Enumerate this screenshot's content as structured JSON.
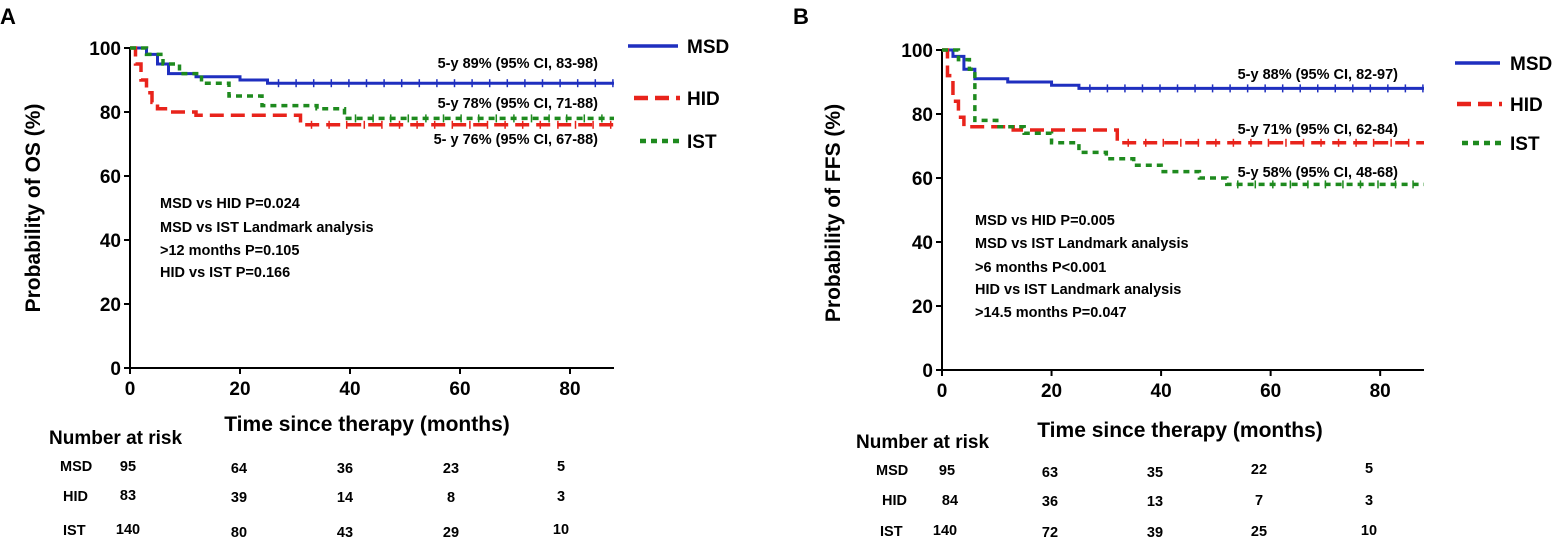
{
  "chart_data": [
    {
      "type": "line",
      "panel": "A",
      "ylabel": "Probability of OS  (%)",
      "xlabel": "Time since therapy (months)",
      "xlim": [
        0,
        88
      ],
      "ylim": [
        0,
        100
      ],
      "xticks": [
        0,
        20,
        40,
        60,
        80
      ],
      "yticks": [
        0,
        20,
        40,
        60,
        80,
        100
      ],
      "legend": [
        "MSD",
        "HID",
        "IST"
      ],
      "series": [
        {
          "name": "MSD",
          "color": "#1f2fbf",
          "dash": "solid",
          "x": [
            0,
            3,
            5,
            7,
            12,
            15,
            20,
            25,
            88
          ],
          "y": [
            100,
            98,
            95,
            92,
            91,
            91,
            90,
            89,
            89
          ]
        },
        {
          "name": "HID",
          "color": "#e8231b",
          "dash": "long",
          "x": [
            0,
            1,
            2,
            3,
            4,
            5,
            7,
            12,
            31,
            88
          ],
          "y": [
            100,
            95,
            90,
            86,
            83,
            81,
            80,
            79,
            76,
            76
          ]
        },
        {
          "name": "IST",
          "color": "#1e8a1e",
          "dash": "short",
          "x": [
            0,
            3,
            6,
            9,
            13,
            18,
            24,
            34,
            39,
            88
          ],
          "y": [
            100,
            98,
            95,
            92,
            89,
            85,
            82,
            81,
            78,
            78
          ]
        }
      ],
      "curve_labels": [
        "5-y 89% (95% CI, 83-98)",
        "5-y 78% (95% CI, 71-88)",
        "5- y 76% (95% CI, 67-88)"
      ],
      "annotations": [
        "MSD vs HID  P=0.024",
        "MSD vs IST  Landmark analysis",
        ">12 months  P=0.105",
        "HID vs IST   P=0.166"
      ],
      "risk_table": {
        "title": "Number at risk",
        "rows": [
          {
            "group": "MSD",
            "values": [
              "95",
              "64",
              "36",
              "23",
              "5"
            ]
          },
          {
            "group": "HID",
            "values": [
              "83",
              "39",
              "14",
              "8",
              "3"
            ]
          },
          {
            "group": "IST",
            "values": [
              "140",
              "80",
              "43",
              "29",
              "10"
            ]
          }
        ]
      }
    },
    {
      "type": "line",
      "panel": "B",
      "ylabel": "Probability of FFS  (%)",
      "xlabel": "Time since therapy (months)",
      "xlim": [
        0,
        88
      ],
      "ylim": [
        0,
        100
      ],
      "xticks": [
        0,
        20,
        40,
        60,
        80
      ],
      "yticks": [
        0,
        20,
        40,
        60,
        80,
        100
      ],
      "legend": [
        "MSD",
        "HID",
        "IST"
      ],
      "series": [
        {
          "name": "MSD",
          "color": "#1f2fbf",
          "dash": "solid",
          "x": [
            0,
            2,
            4,
            6,
            12,
            20,
            25,
            88
          ],
          "y": [
            100,
            98,
            94,
            91,
            90,
            89,
            88,
            88
          ]
        },
        {
          "name": "HID",
          "color": "#e8231b",
          "dash": "long",
          "x": [
            0,
            1,
            2,
            3,
            4,
            13,
            20,
            32,
            88
          ],
          "y": [
            100,
            92,
            84,
            79,
            76,
            75,
            75,
            71,
            71
          ]
        },
        {
          "name": "IST",
          "color": "#1e8a1e",
          "dash": "short",
          "x": [
            0,
            3,
            5,
            6,
            10,
            15,
            20,
            25,
            30,
            35,
            40,
            47,
            52,
            88
          ],
          "y": [
            100,
            97,
            94,
            78,
            76,
            74,
            71,
            68,
            66,
            64,
            62,
            60,
            58,
            58
          ]
        }
      ],
      "curve_labels": [
        "5-y 88% (95% CI, 82-97)",
        "5-y 71% (95% CI, 62-84)",
        "5-y 58% (95% CI, 48-68)"
      ],
      "annotations": [
        "MSD vs HID  P=0.005",
        "MSD vs IST  Landmark analysis",
        " >6 months   P<0.001",
        "HID vs IST Landmark analysis",
        ">14.5 months   P=0.047"
      ],
      "risk_table": {
        "title": "Number at risk",
        "rows": [
          {
            "group": "MSD",
            "values": [
              "95",
              "63",
              "35",
              "22",
              "5"
            ]
          },
          {
            "group": "HID",
            "values": [
              "84",
              "36",
              "13",
              "7",
              "3"
            ]
          },
          {
            "group": "IST",
            "values": [
              "140",
              "72",
              "39",
              "25",
              "10"
            ]
          }
        ]
      }
    }
  ]
}
